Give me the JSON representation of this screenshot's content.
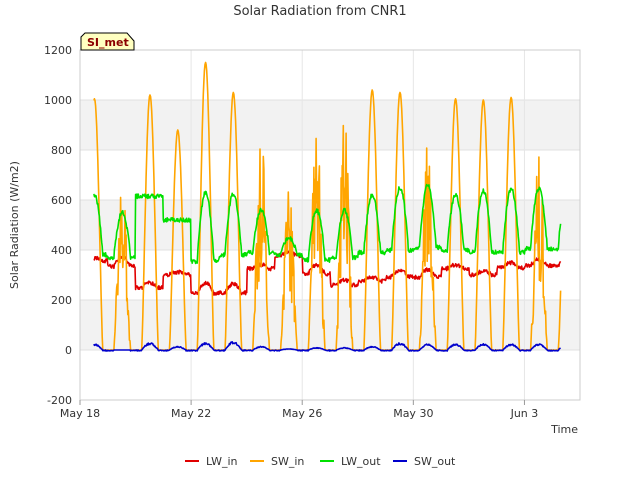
{
  "chart_data": {
    "type": "line",
    "title": "Solar Radiation from CNR1",
    "xlabel": "Time",
    "ylabel": "Solar Radiation (W/m2)",
    "badge": "SI_met",
    "ylim": [
      -200,
      1200
    ],
    "yticks": [
      -200,
      0,
      200,
      400,
      600,
      800,
      1000,
      1200
    ],
    "xlim": [
      "2018-05-18",
      "2018-06-05"
    ],
    "xticks": [
      {
        "date": "2018-05-18",
        "label": "May 18"
      },
      {
        "date": "2018-05-22",
        "label": "May 22"
      },
      {
        "date": "2018-05-26",
        "label": "May 26"
      },
      {
        "date": "2018-05-30",
        "label": "May 30"
      },
      {
        "date": "2018-06-03",
        "label": "Jun 3"
      }
    ],
    "legend_position": "bottom",
    "grid": true,
    "gap": {
      "start_day": 20.5,
      "end_day": 21.8
    },
    "series": [
      {
        "name": "LW_in",
        "color": "#e00000",
        "daily_base": [
          360,
          345,
          255,
          305,
          240,
          240,
          330,
          380,
          315,
          265,
          280,
          300,
          300,
          330,
          305,
          335,
          345
        ],
        "daily_amp": [
          10,
          35,
          20,
          10,
          40,
          35,
          15,
          10,
          35,
          20,
          15,
          25,
          30,
          15,
          15,
          20,
          25
        ]
      },
      {
        "name": "SW_in",
        "color": "#ffa500",
        "daily_peaks": [
          1005,
          690,
          1020,
          880,
          1150,
          1030,
          880,
          640,
          930,
          950,
          1040,
          1030,
          860,
          1005,
          1000,
          1010,
          800
        ]
      },
      {
        "name": "LW_out",
        "color": "#00e000",
        "daily_base": [
          380,
          370,
          615,
          520,
          355,
          380,
          390,
          380,
          360,
          370,
          390,
          400,
          410,
          400,
          390,
          390,
          405
        ],
        "daily_peaks": [
          620,
          550,
          615,
          520,
          630,
          625,
          560,
          450,
          560,
          560,
          620,
          650,
          660,
          620,
          635,
          645,
          645
        ]
      },
      {
        "name": "SW_out",
        "color": "#0000cc",
        "daily_peaks": [
          25,
          0,
          30,
          15,
          30,
          35,
          15,
          5,
          10,
          10,
          15,
          30,
          25,
          25,
          25,
          25,
          25
        ]
      }
    ]
  }
}
